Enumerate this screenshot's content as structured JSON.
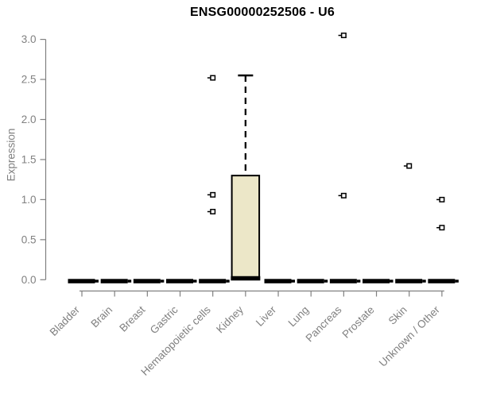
{
  "page": {
    "background": "#ffffff"
  },
  "chart_data": {
    "type": "boxplot",
    "title": "ENSG00000252506 - U6",
    "ylabel": "Expression",
    "xlabel": "",
    "ylim": [
      0.0,
      3.0
    ],
    "yticks": [
      0.0,
      0.5,
      1.0,
      1.5,
      2.0,
      2.5,
      3.0
    ],
    "grid": false,
    "legend": "none",
    "categories": [
      "Bladder",
      "Brain",
      "Breast",
      "Gastric",
      "Hematopoietic cells",
      "Kidney",
      "Liver",
      "Lung",
      "Pancreas",
      "Prostate",
      "Skin",
      "Unknown / Other"
    ],
    "boxes": [
      {
        "category": "Bladder",
        "q1": 0,
        "median": 0,
        "q3": 0,
        "whisker_low": 0,
        "whisker_high": 0,
        "outliers": []
      },
      {
        "category": "Brain",
        "q1": 0,
        "median": 0,
        "q3": 0,
        "whisker_low": 0,
        "whisker_high": 0,
        "outliers": []
      },
      {
        "category": "Breast",
        "q1": 0,
        "median": 0,
        "q3": 0,
        "whisker_low": 0,
        "whisker_high": 0,
        "outliers": []
      },
      {
        "category": "Gastric",
        "q1": 0,
        "median": 0,
        "q3": 0,
        "whisker_low": 0,
        "whisker_high": 0,
        "outliers": []
      },
      {
        "category": "Hematopoietic cells",
        "q1": 0,
        "median": 0,
        "q3": 0,
        "whisker_low": 0,
        "whisker_high": 0,
        "outliers": [
          2.52,
          1.06,
          0.85
        ]
      },
      {
        "category": "Kidney",
        "q1": 0.02,
        "median": 0.02,
        "q3": 1.3,
        "whisker_low": 0.02,
        "whisker_high": 2.55,
        "outliers": []
      },
      {
        "category": "Liver",
        "q1": 0,
        "median": 0,
        "q3": 0,
        "whisker_low": 0,
        "whisker_high": 0,
        "outliers": []
      },
      {
        "category": "Lung",
        "q1": 0,
        "median": 0,
        "q3": 0,
        "whisker_low": 0,
        "whisker_high": 0,
        "outliers": []
      },
      {
        "category": "Pancreas",
        "q1": 0,
        "median": 0,
        "q3": 0,
        "whisker_low": 0,
        "whisker_high": 0,
        "outliers": [
          3.05,
          1.05
        ]
      },
      {
        "category": "Prostate",
        "q1": 0,
        "median": 0,
        "q3": 0,
        "whisker_low": 0,
        "whisker_high": 0,
        "outliers": []
      },
      {
        "category": "Skin",
        "q1": 0,
        "median": 0,
        "q3": 0,
        "whisker_low": 0,
        "whisker_high": 0,
        "outliers": [
          1.42
        ]
      },
      {
        "category": "Unknown / Other",
        "q1": 0,
        "median": 0,
        "q3": 0,
        "whisker_low": 0,
        "whisker_high": 0,
        "outliers": [
          1.0,
          0.65
        ]
      }
    ],
    "colors": {
      "box_fill": "#ece7c8",
      "box_border": "#000000",
      "zero_bar": "#000000",
      "axis": "#808080",
      "tick_text": "#808080",
      "title_text": "#000000",
      "outlier_fill": "#ffffff",
      "outlier_border": "#000000"
    }
  }
}
